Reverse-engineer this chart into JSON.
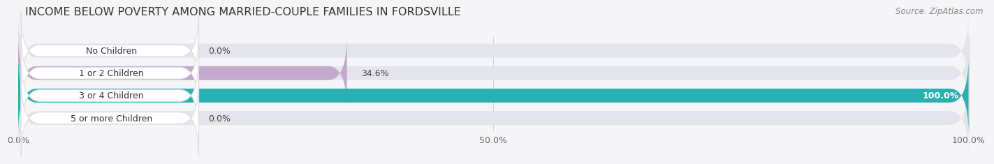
{
  "title": "INCOME BELOW POVERTY AMONG MARRIED-COUPLE FAMILIES IN FORDSVILLE",
  "source": "Source: ZipAtlas.com",
  "categories": [
    "No Children",
    "1 or 2 Children",
    "3 or 4 Children",
    "5 or more Children"
  ],
  "values": [
    0.0,
    34.6,
    100.0,
    0.0
  ],
  "bar_colors": [
    "#aab8d8",
    "#c4a8ce",
    "#2ab0b0",
    "#aab4e0"
  ],
  "bar_bg_color": "#e4e4ec",
  "label_bg_color": "#ffffff",
  "label_border_color": "#dddddd",
  "xtick_labels": [
    "0.0%",
    "50.0%",
    "100.0%"
  ],
  "title_fontsize": 11.5,
  "source_fontsize": 8.5,
  "label_fontsize": 9,
  "value_fontsize": 9,
  "tick_fontsize": 9,
  "background_color": "#f5f5f8"
}
